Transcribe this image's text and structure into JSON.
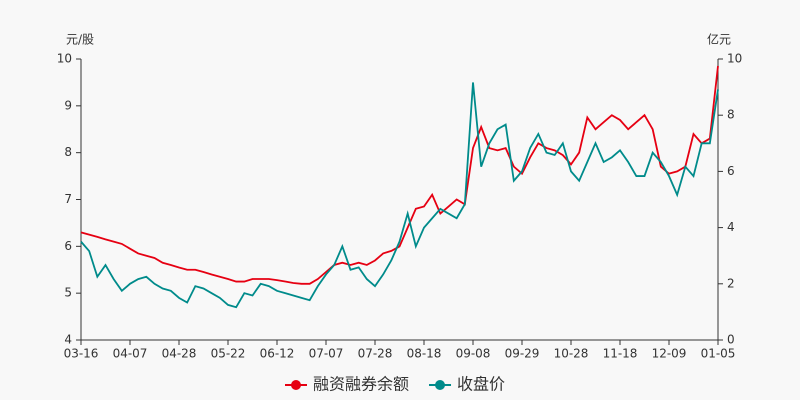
{
  "chart_data": {
    "type": "line",
    "y_label": "元/股",
    "y2_label": "亿元",
    "categories": [
      "03-16",
      null,
      null,
      null,
      null,
      null,
      "04-07",
      null,
      null,
      null,
      null,
      null,
      "04-28",
      null,
      null,
      null,
      null,
      null,
      "05-22",
      null,
      null,
      null,
      null,
      null,
      "06-12",
      null,
      null,
      null,
      null,
      null,
      "07-07",
      null,
      null,
      null,
      null,
      null,
      "07-28",
      null,
      null,
      null,
      null,
      null,
      "08-18",
      null,
      null,
      null,
      null,
      null,
      "09-08",
      null,
      null,
      null,
      null,
      null,
      "09-29",
      null,
      null,
      null,
      null,
      null,
      "10-28",
      null,
      null,
      null,
      null,
      null,
      "11-18",
      null,
      null,
      null,
      null,
      null,
      "12-09",
      null,
      null,
      null,
      null,
      null,
      "01-05"
    ],
    "series": [
      {
        "name": "融资融券余额",
        "color": "#e60012",
        "axis": "y2",
        "values": [
          3.83,
          3.75,
          3.67,
          3.58,
          3.5,
          3.42,
          3.25,
          3.08,
          3.0,
          2.92,
          2.75,
          2.67,
          2.58,
          2.5,
          2.5,
          2.42,
          2.33,
          2.25,
          2.17,
          2.08,
          2.08,
          2.17,
          2.17,
          2.17,
          2.13,
          2.08,
          2.03,
          2.0,
          2.0,
          2.17,
          2.42,
          2.67,
          2.75,
          2.67,
          2.75,
          2.67,
          2.83,
          3.08,
          3.17,
          3.33,
          4.0,
          4.67,
          4.75,
          5.17,
          4.5,
          4.75,
          5.0,
          4.83,
          6.83,
          7.58,
          6.83,
          6.75,
          6.83,
          6.17,
          5.92,
          6.5,
          7.0,
          6.83,
          6.75,
          6.58,
          6.25,
          6.67,
          7.92,
          7.5,
          7.75,
          8.0,
          7.83,
          7.5,
          7.75,
          8.0,
          7.5,
          6.17,
          5.92,
          6.0,
          6.17,
          7.33,
          7.0,
          7.17,
          9.75
        ]
      },
      {
        "name": "收盘价",
        "color": "#008b8b",
        "values": [
          6.1,
          5.9,
          5.35,
          5.6,
          5.3,
          5.05,
          5.2,
          5.3,
          5.35,
          5.2,
          5.1,
          5.05,
          4.9,
          4.8,
          5.15,
          5.1,
          5.0,
          4.9,
          4.75,
          4.7,
          5.0,
          4.95,
          5.2,
          5.15,
          5.05,
          5.0,
          4.95,
          4.9,
          4.85,
          5.15,
          5.4,
          5.6,
          6.0,
          5.5,
          5.55,
          5.3,
          5.15,
          5.4,
          5.7,
          6.1,
          6.7,
          6.0,
          6.4,
          6.6,
          6.8,
          6.7,
          6.6,
          6.9,
          9.5,
          7.7,
          8.2,
          8.5,
          8.6,
          7.4,
          7.6,
          8.1,
          8.4,
          8.0,
          7.95,
          8.2,
          7.6,
          7.4,
          7.8,
          8.2,
          7.8,
          7.9,
          8.05,
          7.8,
          7.5,
          7.5,
          8.0,
          7.8,
          7.5,
          7.1,
          7.7,
          7.5,
          8.2,
          8.2,
          9.35
        ]
      }
    ],
    "ylim": [
      4,
      10
    ],
    "yticks": [
      4,
      5,
      6,
      7,
      8,
      9,
      10
    ],
    "y2lim": [
      0,
      10
    ],
    "y2ticks": [
      0,
      2,
      4,
      6,
      8,
      10
    ],
    "grid": false,
    "legend": "bottom"
  }
}
